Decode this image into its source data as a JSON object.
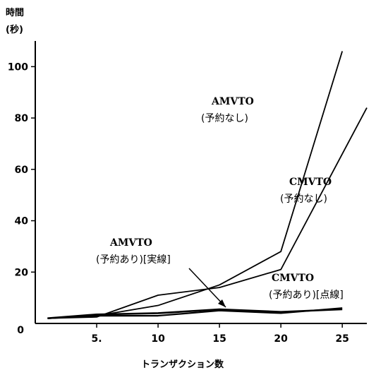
{
  "chart_data": {
    "type": "line",
    "ylabel_line1": "時間",
    "ylabel_line2": "(秒)",
    "xlabel": "トランザクション数",
    "ylim": [
      0,
      110
    ],
    "xlim": [
      0,
      27
    ],
    "xticks": [
      {
        "value": 5,
        "label": "5."
      },
      {
        "value": 10,
        "label": "10"
      },
      {
        "value": 15,
        "label": "15"
      },
      {
        "value": 20,
        "label": "20"
      },
      {
        "value": 25,
        "label": "25"
      }
    ],
    "yticks": [
      {
        "value": 0,
        "label": "0"
      },
      {
        "value": 20,
        "label": "20"
      },
      {
        "value": 40,
        "label": "40"
      },
      {
        "value": 60,
        "label": "60"
      },
      {
        "value": 80,
        "label": "80"
      },
      {
        "value": 100,
        "label": "100"
      }
    ],
    "series": [
      {
        "name_line1": "AMVTO",
        "name_line2": "(予約なし)",
        "x": [
          1,
          5,
          10,
          15,
          20,
          25
        ],
        "y": [
          2,
          3,
          7,
          15,
          28,
          106
        ]
      },
      {
        "name_line1": "CMVTO",
        "name_line2": "(予約なし)",
        "x": [
          1,
          5,
          10,
          15,
          20,
          27
        ],
        "y": [
          2,
          2.5,
          11,
          14,
          21,
          84
        ]
      },
      {
        "name_line1": "AMVTO",
        "name_line2": "(予約あり)[実線]",
        "x": [
          1,
          5,
          10,
          15,
          20,
          25
        ],
        "y": [
          2,
          3.5,
          4,
          5.5,
          4.5,
          5.5
        ]
      },
      {
        "name_line1": "CMVTO",
        "name_line2": "(予約あり)[点線]",
        "x": [
          1,
          5,
          10,
          15,
          20,
          25
        ],
        "y": [
          2,
          3,
          3,
          5,
          4,
          6
        ]
      }
    ]
  }
}
